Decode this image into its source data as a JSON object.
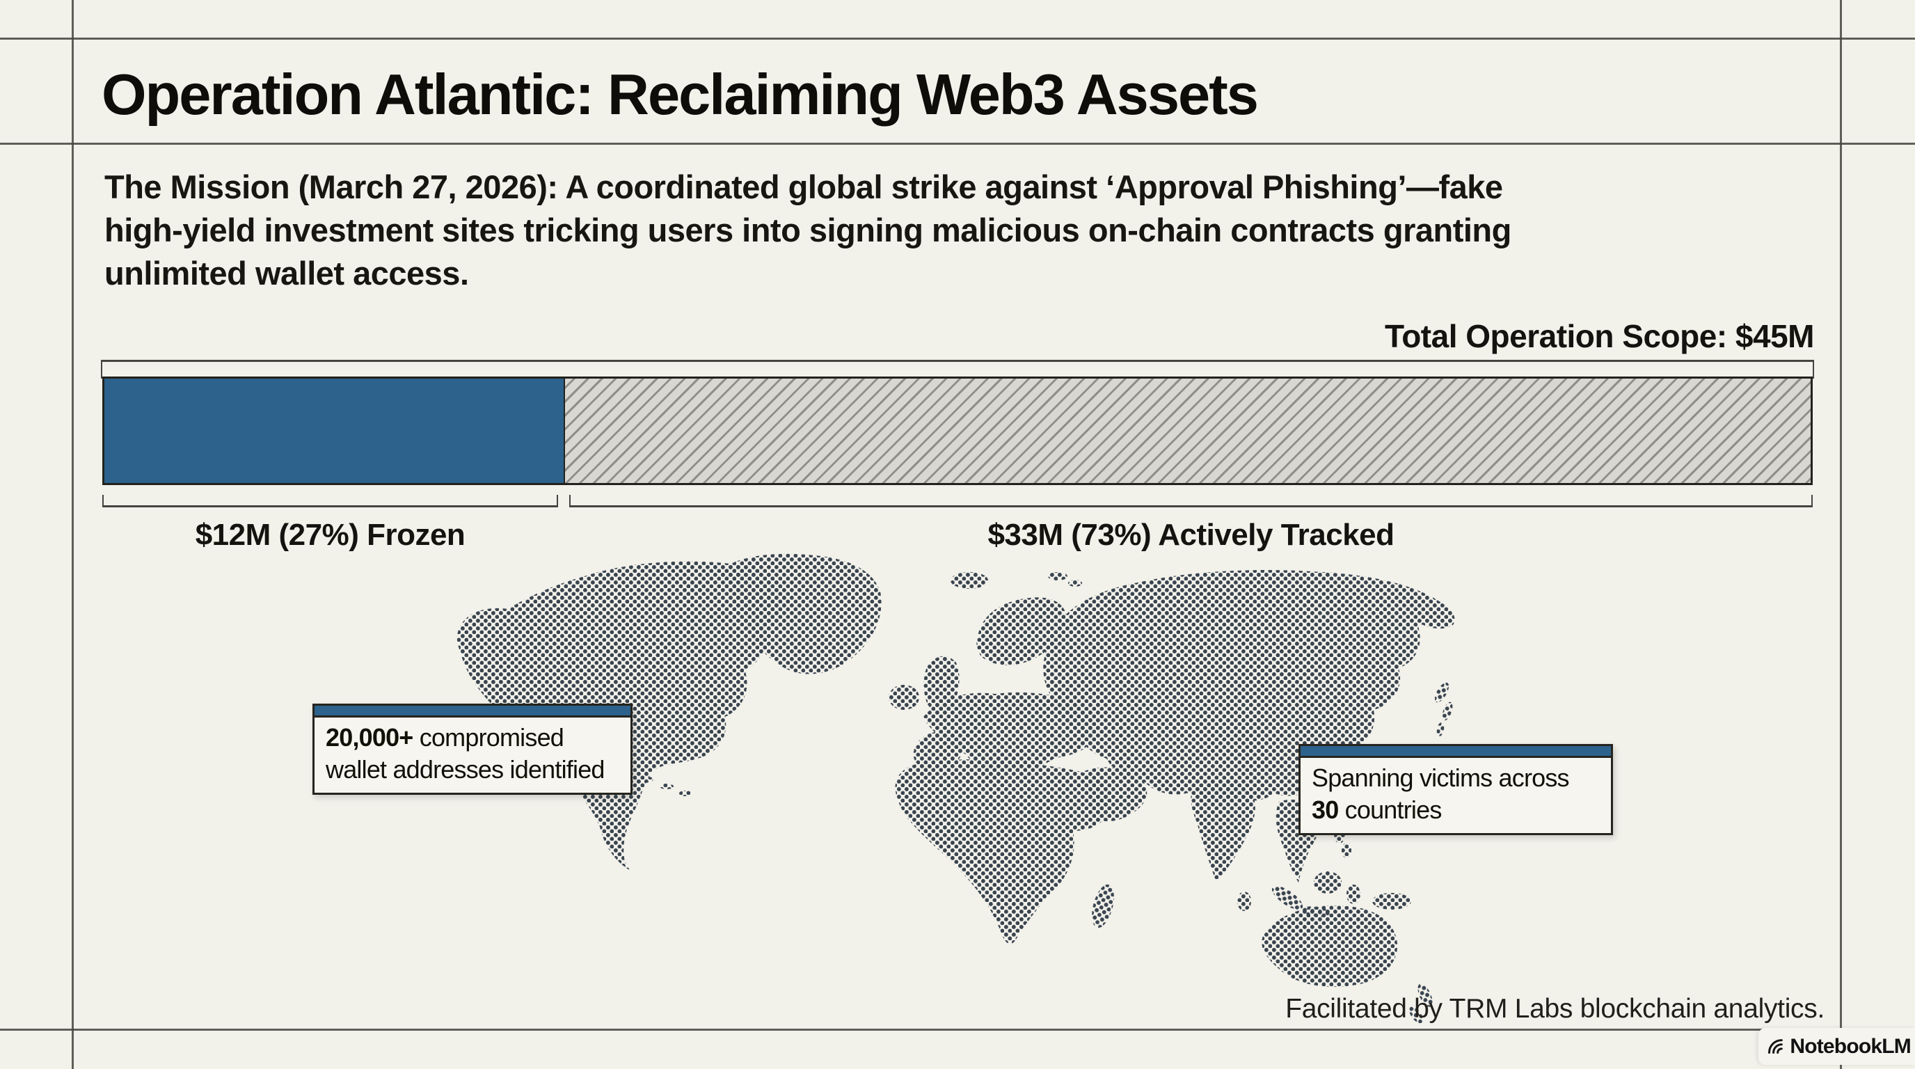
{
  "header": {
    "title": "Operation Atlantic: Reclaiming Web3 Assets"
  },
  "mission": {
    "lines": [
      "The Mission (March 27, 2026): A coordinated global strike against ‘Approval Phishing’—fake",
      "high-yield investment sites tricking users into signing malicious on-chain contracts granting",
      "unlimited wallet access."
    ]
  },
  "chart_data": {
    "type": "bar",
    "orientation": "horizontal-stacked-progress",
    "title": "Total Operation Scope: $45M",
    "total_label": "Total Operation Scope: $45M",
    "total_musd": 45,
    "categories": [
      "Frozen",
      "Actively Tracked"
    ],
    "values_musd": [
      12,
      33
    ],
    "percentages": [
      27,
      73
    ],
    "segment_labels": [
      "$12M (27%) Frozen",
      "$33M (73%) Actively Tracked"
    ],
    "legend_position": "below-bar-brackets",
    "colors": {
      "frozen_fill": "#2d628c",
      "tracked_fill": "diagonal-hatch",
      "hatch_line": "#8f8e88",
      "hatch_bg": "#d8d7d1",
      "bar_border": "#23221c"
    }
  },
  "map": {
    "style": "halftone-dot-world-map",
    "dot_color": "#3a4550",
    "callouts": {
      "wallets": {
        "bold": "20,000+",
        "line1_rest": " compromised",
        "line2": "wallet addresses identified"
      },
      "countries": {
        "line1": "Spanning victims across",
        "bold": "30",
        "line2_rest": " countries"
      }
    }
  },
  "footer": {
    "credit": "Facilitated by TRM Labs blockchain analytics.",
    "brand": "NotebookLM"
  },
  "theme": {
    "background": "#f2f1ea",
    "frame_line": "#45443e",
    "ink": "#14130f",
    "accent_blue": "#2d628c"
  }
}
